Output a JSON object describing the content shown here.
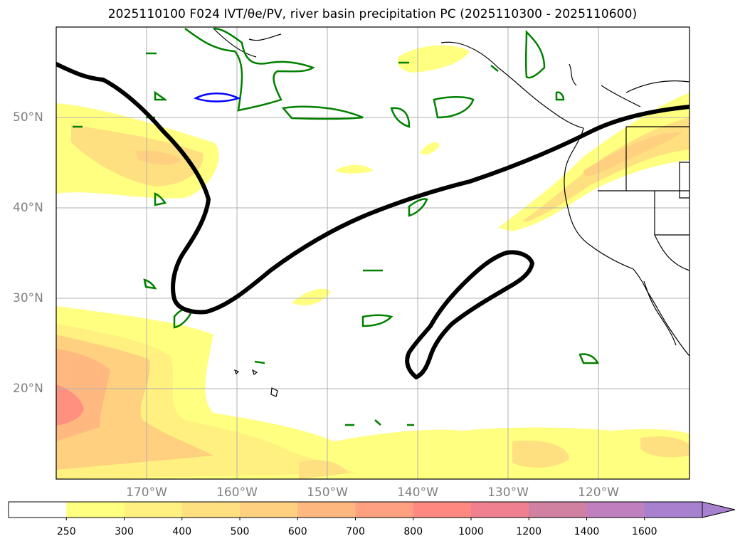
{
  "title": "2025110100 F024 IVT/θe/PV, river basin precipitation PC (2025110300 - 2025110600)",
  "map": {
    "lat_labels": [
      "50°N",
      "40°N",
      "30°N",
      "20°N"
    ],
    "lon_labels": [
      "170°W",
      "160°W",
      "150°W",
      "140°W",
      "130°W",
      "120°W"
    ]
  },
  "colorbar": {
    "levels": [
      "250",
      "300",
      "400",
      "500",
      "600",
      "700",
      "800",
      "1000",
      "1200",
      "1400",
      "1600"
    ],
    "colors": [
      "#ffffff",
      "#ffff80",
      "#fff080",
      "#ffe080",
      "#ffd080",
      "#ffb880",
      "#ffa080",
      "#ff8880",
      "#f08090",
      "#d080a0",
      "#c080c0",
      "#a880d0"
    ]
  },
  "colors": {
    "ivt_low": "#ffff80",
    "ivt_mid": "#ffd080",
    "ivt_high": "#ff9080",
    "pv_contour": "#008000",
    "theta_contour": "#0000ff",
    "front_line": "#000000",
    "grid": "#b0b0b0"
  }
}
